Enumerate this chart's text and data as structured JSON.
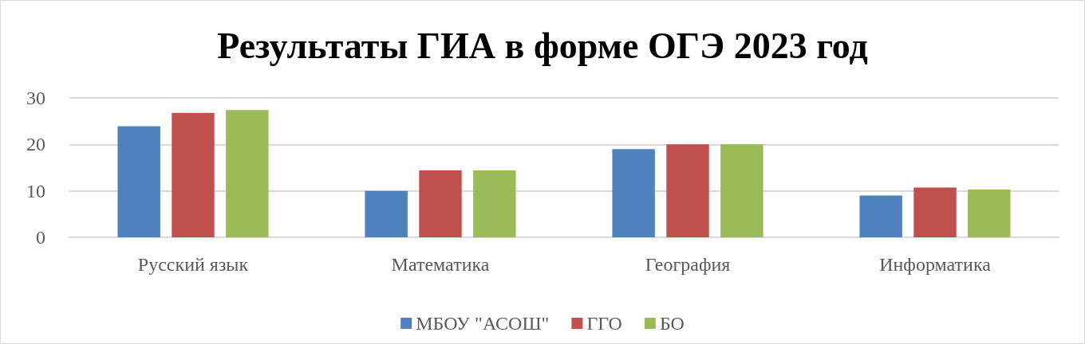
{
  "chart_data": {
    "type": "bar",
    "title": "Результаты ГИА в форме ОГЭ 2023 год",
    "categories": [
      "Русский язык",
      "Математика",
      "География",
      "Информатика"
    ],
    "series": [
      {
        "name": "МБОУ \"АСОШ\"",
        "color": "#4f81bd",
        "values": [
          23.9,
          10,
          19,
          9
        ]
      },
      {
        "name": "ГГО",
        "color": "#c0504d",
        "values": [
          26.8,
          14.4,
          20,
          10.7
        ]
      },
      {
        "name": "БО",
        "color": "#9bbb59",
        "values": [
          27.4,
          14.4,
          20,
          10.3
        ]
      }
    ],
    "ylim": [
      0,
      30
    ],
    "yticks": [
      0,
      10,
      20,
      30
    ],
    "grid": "y",
    "legend": "bottom"
  }
}
